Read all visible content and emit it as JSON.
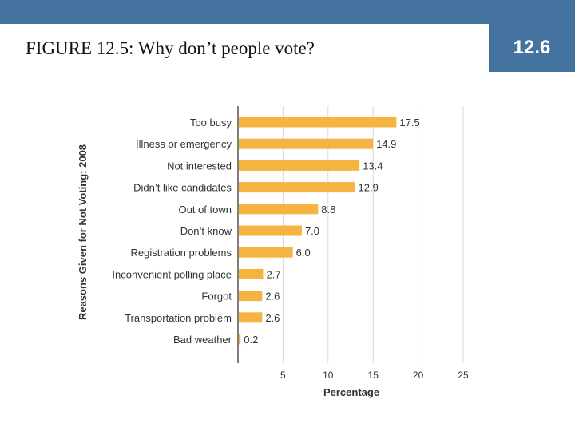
{
  "slide": {
    "title": "FIGURE 12.5: Why don’t people vote?",
    "section_number": "12.6"
  },
  "colors": {
    "header_bar": "#4473a0",
    "bar": "#f5b342",
    "grid": "#d9d9d9",
    "axis": "#555555"
  },
  "chart_data": {
    "type": "bar",
    "orientation": "horizontal",
    "categories": [
      "Too busy",
      "Illness or emergency",
      "Not interested",
      "Didn’t like candidates",
      "Out of town",
      "Don’t know",
      "Registration problems",
      "Inconvenient polling place",
      "Forgot",
      "Transportation problem",
      "Bad weather"
    ],
    "values": [
      17.5,
      14.9,
      13.4,
      12.9,
      8.8,
      7.0,
      6.0,
      2.7,
      2.6,
      2.6,
      0.2
    ],
    "value_labels": [
      "17.5",
      "14.9",
      "13.4",
      "12.9",
      "8.8",
      "7.0",
      "6.0",
      "2.7",
      "2.6",
      "2.6",
      "0.2"
    ],
    "xlabel": "Percentage",
    "ylabel": "Reasons Given for Not Voting: 2008",
    "xlim": [
      0,
      25
    ],
    "xticks": [
      5,
      10,
      15,
      20,
      25
    ],
    "grid": "vertical"
  }
}
